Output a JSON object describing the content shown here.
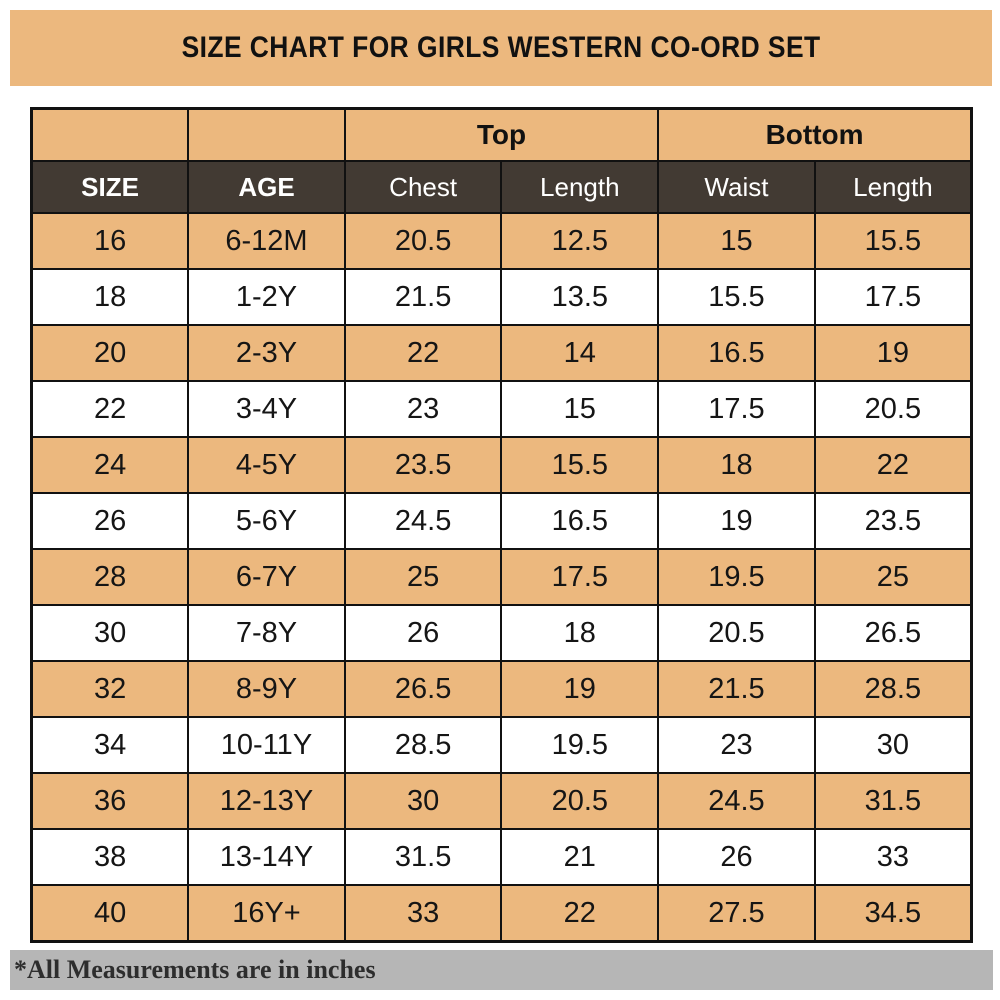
{
  "title": "SIZE CHART FOR GIRLS WESTERN CO-ORD SET",
  "footer_note": "*All Measurements are in inches",
  "colors": {
    "banner_bg": "#ecb87e",
    "shaded_row_bg": "#ecb87e",
    "header_row_bg": "#423a33",
    "header_row_text": "#ffffff",
    "border": "#111111",
    "footer_bg": "#b6b6b6",
    "footer_text": "#2d2d2d",
    "page_bg": "#ffffff"
  },
  "chart_data": {
    "type": "table",
    "title": "SIZE CHART FOR GIRLS WESTERN CO-ORD SET",
    "group_headers": [
      {
        "label": "Top",
        "spans": [
          "Chest",
          "Length"
        ]
      },
      {
        "label": "Bottom",
        "spans": [
          "Waist",
          "Length"
        ]
      }
    ],
    "column_headers": [
      "SIZE",
      "AGE",
      "Chest",
      "Length",
      "Waist",
      "Length"
    ],
    "rows": [
      [
        "16",
        "6-12M",
        "20.5",
        "12.5",
        "15",
        "15.5"
      ],
      [
        "18",
        "1-2Y",
        "21.5",
        "13.5",
        "15.5",
        "17.5"
      ],
      [
        "20",
        "2-3Y",
        "22",
        "14",
        "16.5",
        "19"
      ],
      [
        "22",
        "3-4Y",
        "23",
        "15",
        "17.5",
        "20.5"
      ],
      [
        "24",
        "4-5Y",
        "23.5",
        "15.5",
        "18",
        "22"
      ],
      [
        "26",
        "5-6Y",
        "24.5",
        "16.5",
        "19",
        "23.5"
      ],
      [
        "28",
        "6-7Y",
        "25",
        "17.5",
        "19.5",
        "25"
      ],
      [
        "30",
        "7-8Y",
        "26",
        "18",
        "20.5",
        "26.5"
      ],
      [
        "32",
        "8-9Y",
        "26.5",
        "19",
        "21.5",
        "28.5"
      ],
      [
        "34",
        "10-11Y",
        "28.5",
        "19.5",
        "23",
        "30"
      ],
      [
        "36",
        "12-13Y",
        "30",
        "20.5",
        "24.5",
        "31.5"
      ],
      [
        "38",
        "13-14Y",
        "31.5",
        "21",
        "26",
        "33"
      ],
      [
        "40",
        "16Y+",
        "33",
        "22",
        "27.5",
        "34.5"
      ]
    ],
    "footnote": "*All Measurements are in inches"
  }
}
